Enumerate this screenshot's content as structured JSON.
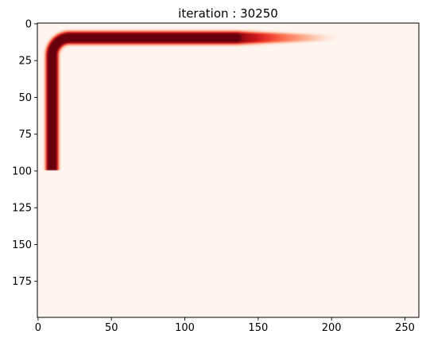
{
  "chart_data": {
    "type": "heatmap",
    "title": "iteration : 30250",
    "xlabel": "",
    "ylabel": "",
    "colormap": "Reds",
    "colors": {
      "low": "#fff5f0",
      "high": "#67000d",
      "frame": "#000000"
    },
    "grid": false,
    "xlim": [
      -0.5,
      259.5
    ],
    "ylim": [
      199.5,
      -0.5
    ],
    "y_inverted": true,
    "xticks": [
      0,
      50,
      100,
      150,
      200,
      250
    ],
    "yticks": [
      0,
      25,
      50,
      75,
      100,
      125,
      150,
      175
    ],
    "xtick_labels": [
      "0",
      "50",
      "100",
      "150",
      "200",
      "250"
    ],
    "ytick_labels": [
      "0",
      "25",
      "50",
      "75",
      "100",
      "125",
      "150",
      "175"
    ],
    "features": [
      {
        "name": "vertical-stem",
        "shape": "segment",
        "x1": 10,
        "y1": 100,
        "x2": 10,
        "y2": 22,
        "half_width": 6.5,
        "intensity": 1.0,
        "end_cap": "flat"
      },
      {
        "name": "corner-arc",
        "shape": "arc",
        "cx": 22,
        "cy": 22,
        "radius": 12,
        "from_deg": 180,
        "to_deg": 270,
        "half_width": 6.5,
        "intensity": 1.0
      },
      {
        "name": "horizontal-band",
        "shape": "segment",
        "x1": 22,
        "y1": 10,
        "x2": 136,
        "y2": 10,
        "half_width": 6.5,
        "intensity": 1.0
      },
      {
        "name": "fading-tail",
        "shape": "segment",
        "x1": 136,
        "y1": 10,
        "x2": 205,
        "y2": 10,
        "half_width": 6.5,
        "intensity_from": 1.0,
        "intensity_to": 0.0
      }
    ]
  }
}
